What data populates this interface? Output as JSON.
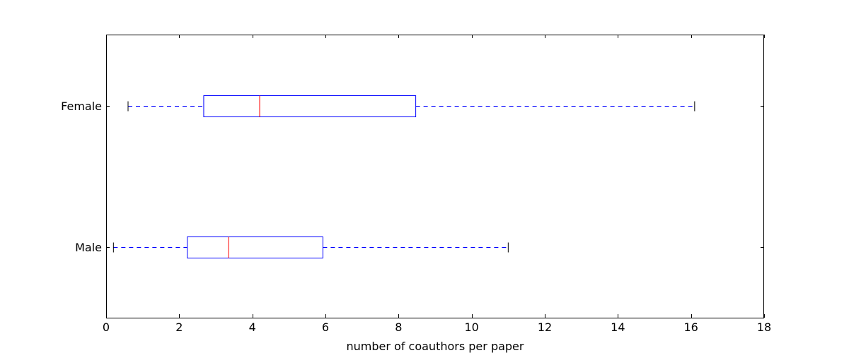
{
  "chart_data": {
    "type": "boxplot",
    "orientation": "horizontal",
    "xlabel": "number of coauthors per paper",
    "ylabel": "",
    "xlim": [
      0,
      18
    ],
    "xticks": [
      0,
      2,
      4,
      6,
      8,
      10,
      12,
      14,
      16,
      18
    ],
    "grid": false,
    "categories": [
      "Male",
      "Female"
    ],
    "boxes": [
      {
        "label": "Male",
        "whisker_low": 0.2,
        "q1": 2.22,
        "median": 3.35,
        "q3": 5.93,
        "whisker_high": 11.0
      },
      {
        "label": "Female",
        "whisker_low": 0.6,
        "q1": 2.67,
        "median": 4.2,
        "q3": 8.47,
        "whisker_high": 16.1
      }
    ],
    "colors": {
      "box": "#0000ff",
      "whisker": "#0000ff",
      "median": "#ff0000",
      "cap": "#000000",
      "frame": "#000000"
    }
  }
}
